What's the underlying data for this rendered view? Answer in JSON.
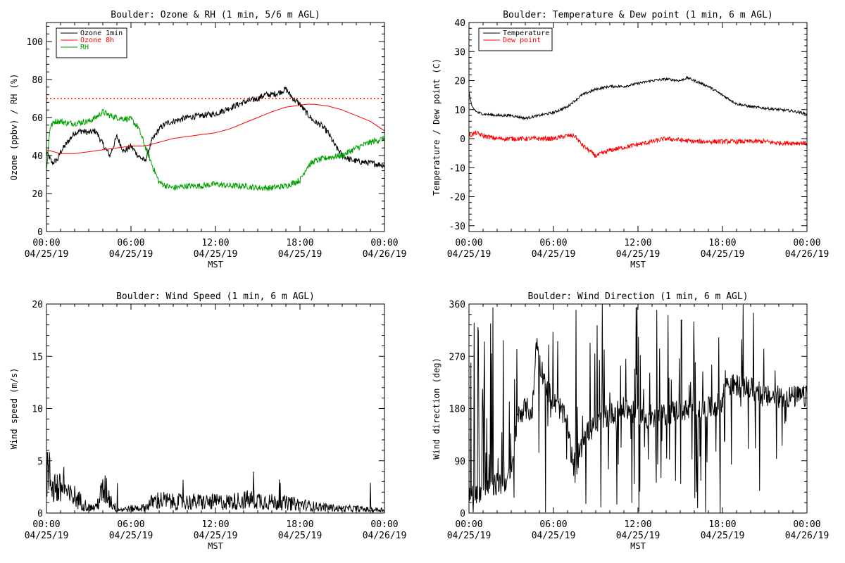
{
  "chart_data": [
    {
      "type": "line",
      "title": "Boulder: Ozone & RH (1 min, 5/6 m AGL)",
      "xlabel": "MST",
      "ylabel": "Ozone (ppbv) / RH (%)",
      "x_ticks": [
        [
          "00:00",
          "04/25/19"
        ],
        [
          "06:00",
          "04/25/19"
        ],
        [
          "12:00",
          "04/25/19"
        ],
        [
          "18:00",
          "04/25/19"
        ],
        [
          "00:00",
          "04/26/19"
        ]
      ],
      "xlim_hours": [
        0,
        24
      ],
      "ylim": [
        0,
        110
      ],
      "y_ticks": [
        0,
        20,
        40,
        60,
        80,
        100
      ],
      "legend_position": "top-left",
      "reference_line": {
        "y": 70,
        "color": "#ff0000",
        "style": "dotted"
      },
      "series": [
        {
          "name": "Ozone 1min",
          "color": "#000000",
          "noisy": true,
          "x": [
            0,
            0.4,
            0.8,
            1.0,
            1.5,
            2.0,
            2.5,
            3.0,
            3.5,
            4.0,
            4.5,
            5.0,
            5.5,
            6.0,
            6.5,
            7.0,
            7.5,
            8.0,
            8.5,
            9,
            10,
            11,
            12,
            13,
            14,
            15,
            15.5,
            16,
            16.5,
            17.0,
            17.5,
            18.0,
            18.5,
            19,
            19.5,
            20,
            20.5,
            21,
            21.5,
            22,
            23,
            24
          ],
          "y": [
            42,
            36,
            38,
            42,
            47,
            52,
            53,
            52,
            53,
            46,
            40,
            50,
            42,
            45,
            40,
            37,
            48,
            54,
            57,
            58,
            60,
            61,
            62,
            65,
            68,
            70,
            72,
            72,
            73,
            75,
            70,
            67,
            62,
            58,
            56,
            52,
            45,
            40,
            38,
            37,
            36,
            35
          ]
        },
        {
          "name": "Ozone 8h",
          "color": "#ff0000",
          "noisy": false,
          "x": [
            0,
            1,
            2,
            3,
            4,
            5,
            6,
            7,
            8,
            9,
            10,
            11,
            12,
            13,
            14,
            15,
            16,
            17,
            18,
            18.5,
            19,
            20,
            21,
            22,
            23,
            24
          ],
          "y": [
            43,
            41,
            41,
            42,
            43,
            44,
            45,
            45,
            47,
            49,
            50,
            51,
            52,
            54,
            57,
            60,
            63,
            65.5,
            66.5,
            67,
            67,
            66,
            64,
            61,
            58,
            53
          ]
        },
        {
          "name": "RH",
          "color": "#00a000",
          "noisy": true,
          "x": [
            0,
            0.25,
            0.6,
            1.0,
            1.5,
            2,
            3,
            3.5,
            4.0,
            4.5,
            5,
            6.0,
            6.5,
            7.0,
            7.5,
            8.0,
            8.5,
            9,
            10,
            11,
            12,
            13,
            14,
            15,
            16,
            17,
            18,
            18.5,
            19,
            20,
            21,
            22,
            23,
            24
          ],
          "y": [
            32,
            55,
            58,
            58,
            57,
            57,
            58,
            60,
            63,
            61,
            60,
            59,
            55,
            45,
            35,
            26,
            24,
            23,
            24,
            24,
            25,
            24,
            24,
            23,
            23,
            24,
            27,
            34,
            37,
            39,
            40,
            44,
            47,
            49
          ]
        }
      ]
    },
    {
      "type": "line",
      "title": "Boulder: Temperature & Dew point (1 min, 6 m AGL)",
      "xlabel": "MST",
      "ylabel": "Temperature / Dew point (C)",
      "x_ticks": [
        [
          "00:00",
          "04/25/19"
        ],
        [
          "06:00",
          "04/25/19"
        ],
        [
          "12:00",
          "04/25/19"
        ],
        [
          "18:00",
          "04/25/19"
        ],
        [
          "00:00",
          "04/26/19"
        ]
      ],
      "xlim_hours": [
        0,
        24
      ],
      "ylim": [
        -32,
        40
      ],
      "y_ticks": [
        -30,
        -20,
        -10,
        0,
        10,
        20,
        30,
        40
      ],
      "legend_position": "top-left",
      "series": [
        {
          "name": "Temperature",
          "color": "#000000",
          "noisy": true,
          "x": [
            0,
            0.2,
            0.6,
            1,
            2,
            3,
            4.0,
            4.5,
            5,
            6,
            7,
            7.5,
            8,
            9,
            10,
            11,
            12,
            13,
            14,
            15,
            15.5,
            16,
            17,
            18,
            19,
            20,
            21,
            22,
            23,
            24
          ],
          "y": [
            16,
            11,
            9,
            8.5,
            8,
            8,
            7,
            7.5,
            8,
            9,
            11,
            13,
            15,
            17,
            18,
            18,
            19,
            20,
            20.5,
            20,
            21,
            20,
            18,
            15,
            12,
            11,
            10.5,
            10,
            9.5,
            8.5
          ]
        },
        {
          "name": "Dew point",
          "color": "#ff0000",
          "noisy": true,
          "x": [
            0,
            0.5,
            1,
            2,
            3,
            4,
            5,
            6,
            7,
            7.5,
            8,
            8.5,
            9,
            10,
            11,
            12,
            13,
            14,
            15,
            16,
            17,
            18,
            19,
            20,
            21,
            22,
            23,
            24
          ],
          "y": [
            1,
            2,
            1,
            0,
            0,
            0,
            0,
            0,
            1,
            1,
            -2,
            -4,
            -6,
            -4,
            -3,
            -2,
            -1,
            0,
            -0.5,
            -1,
            -1,
            -1,
            -1,
            -1,
            -1,
            -1.5,
            -1.5,
            -1.5
          ]
        }
      ]
    },
    {
      "type": "line",
      "title": "Boulder: Wind Speed (1 min, 6 m AGL)",
      "xlabel": "MST",
      "ylabel": "Wind speed (m/s)",
      "x_ticks": [
        [
          "00:00",
          "04/25/19"
        ],
        [
          "06:00",
          "04/25/19"
        ],
        [
          "12:00",
          "04/25/19"
        ],
        [
          "18:00",
          "04/25/19"
        ],
        [
          "00:00",
          "04/26/19"
        ]
      ],
      "xlim_hours": [
        0,
        24
      ],
      "ylim": [
        0,
        20
      ],
      "y_ticks": [
        0,
        5,
        10,
        15,
        20
      ],
      "series": [
        {
          "color": "#000000",
          "noisy": true,
          "x": [
            0,
            0.3,
            0.6,
            1,
            1.2,
            1.5,
            2,
            2.5,
            3,
            3.5,
            4,
            4.3,
            4.6,
            5,
            6,
            7,
            7.5,
            8,
            9,
            10,
            11,
            12,
            13,
            14,
            15,
            16,
            17,
            18,
            19,
            20,
            21,
            22,
            23,
            24
          ],
          "y": [
            4,
            3,
            2.5,
            2,
            3,
            1.5,
            1.5,
            1,
            0.5,
            0.5,
            2,
            2,
            1,
            0.3,
            0.4,
            0.5,
            1,
            1.2,
            1,
            1,
            1,
            1,
            1,
            1.2,
            1.2,
            1,
            0.9,
            0.8,
            0.6,
            0.5,
            0.4,
            0.4,
            0.3,
            0.3
          ]
        }
      ]
    },
    {
      "type": "line",
      "title": "Boulder: Wind Direction (1 min, 6 m AGL)",
      "xlabel": "MST",
      "ylabel": "Wind direction (deg)",
      "x_ticks": [
        [
          "00:00",
          "04/25/19"
        ],
        [
          "06:00",
          "04/25/19"
        ],
        [
          "12:00",
          "04/25/19"
        ],
        [
          "18:00",
          "04/25/19"
        ],
        [
          "00:00",
          "04/26/19"
        ]
      ],
      "xlim_hours": [
        0,
        24
      ],
      "ylim": [
        0,
        360
      ],
      "y_ticks": [
        0,
        90,
        180,
        270,
        360
      ],
      "series": [
        {
          "color": "#000000",
          "noisy": true,
          "x": [
            0,
            1,
            2,
            3,
            3.5,
            4,
            4.5,
            4.8,
            5,
            5.5,
            6,
            6.5,
            7,
            7.5,
            8,
            9,
            10,
            11,
            12,
            13,
            14,
            15,
            16,
            17,
            18,
            18.2,
            18.5,
            19,
            20,
            21,
            22,
            23,
            24
          ],
          "y": [
            30,
            40,
            50,
            60,
            170,
            180,
            175,
            300,
            260,
            220,
            190,
            180,
            150,
            60,
            130,
            150,
            170,
            180,
            170,
            160,
            170,
            180,
            170,
            180,
            190,
            230,
            220,
            220,
            215,
            200,
            200,
            200,
            200
          ]
        }
      ]
    }
  ]
}
